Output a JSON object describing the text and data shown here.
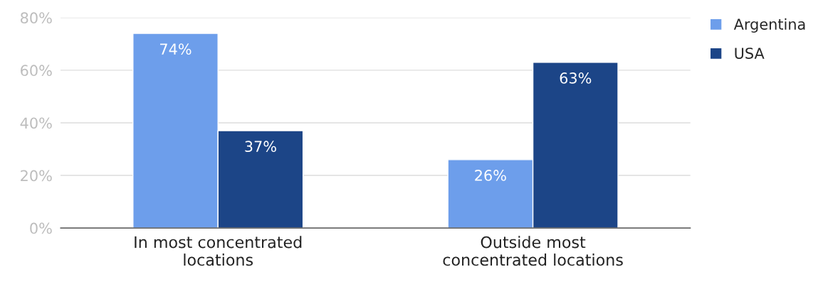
{
  "chart_data": {
    "type": "bar",
    "categories": [
      "In most concentrated\nlocations",
      "Outside most\nconcentrated locations"
    ],
    "series": [
      {
        "name": "Argentina",
        "color": "#6d9eeb",
        "values": [
          74,
          26
        ],
        "value_labels": [
          "74%",
          "26%"
        ]
      },
      {
        "name": "USA",
        "color": "#1c4587",
        "values": [
          37,
          63
        ],
        "value_labels": [
          "37%",
          "63%"
        ]
      }
    ],
    "ylim": [
      0,
      80
    ],
    "yticks": [
      {
        "value": 0,
        "label": "0%"
      },
      {
        "value": 20,
        "label": "20%"
      },
      {
        "value": 40,
        "label": "40%"
      },
      {
        "value": 60,
        "label": "60%"
      },
      {
        "value": 80,
        "label": "80%"
      }
    ],
    "grid": "y",
    "legend": "top right"
  }
}
